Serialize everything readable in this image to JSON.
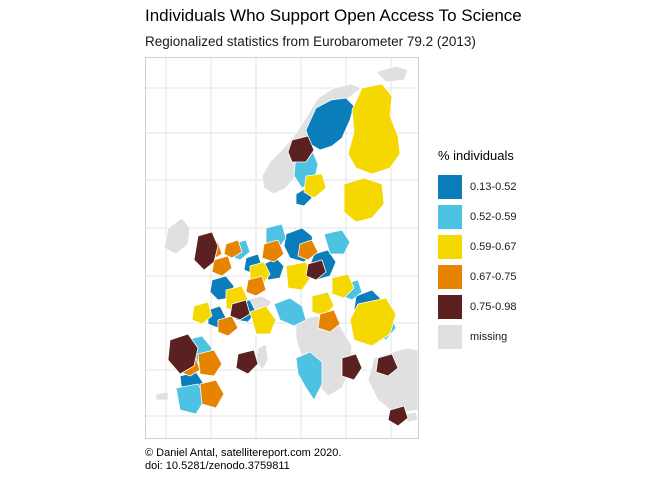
{
  "title": "Individuals Who Support Open Access To Science",
  "subtitle": "Regionalized statistics from Eurobarometer 79.2 (2013)",
  "legend": {
    "title": "% individuals",
    "items": [
      {
        "label": "0.13-0.52",
        "color": "#0A7DBA"
      },
      {
        "label": "0.52-0.59",
        "color": "#4EC2E2"
      },
      {
        "label": "0.59-0.67",
        "color": "#F5D800"
      },
      {
        "label": "0.67-0.75",
        "color": "#E68400"
      },
      {
        "label": "0.75-0.98",
        "color": "#5B2120"
      },
      {
        "label": "missing",
        "color": "#E0E0E0"
      }
    ]
  },
  "caption": {
    "line1": "© Daniel Antal, satellitereport.com 2020.",
    "line2": "doi: 10.5281/zenodo.3759811"
  },
  "colors": {
    "missing": "#E0E0E0",
    "grid": "#E3E3E3",
    "border": "#FFFFFF"
  }
}
